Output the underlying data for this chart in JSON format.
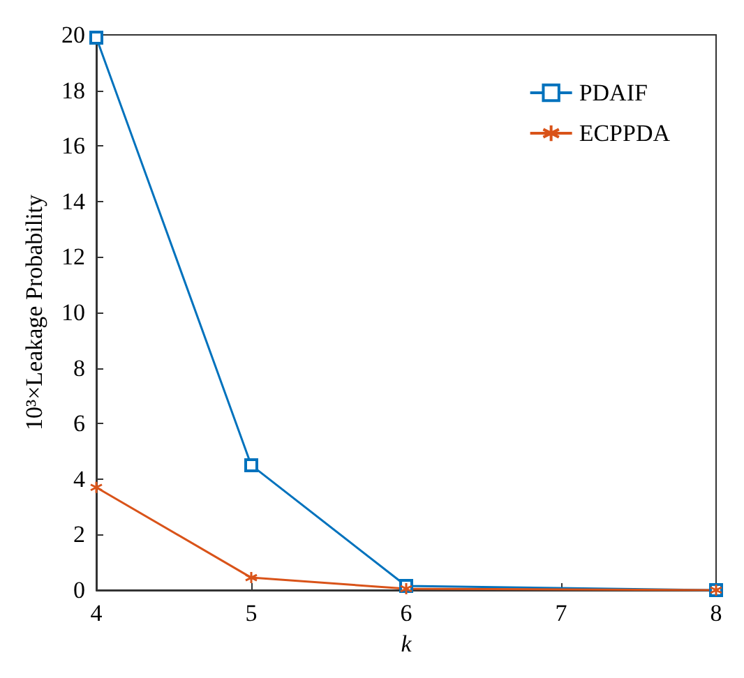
{
  "chart_data": {
    "type": "line",
    "xlabel": "k",
    "ylabel": "10³×Leakage Probability",
    "x": [
      4,
      5,
      6,
      8
    ],
    "xlim": [
      4,
      8
    ],
    "xticks": [
      4,
      5,
      6,
      7,
      8
    ],
    "ylim": [
      0,
      20
    ],
    "yticks": [
      0,
      2,
      4,
      6,
      8,
      10,
      12,
      14,
      16,
      18,
      20
    ],
    "grid": false,
    "legend": "top right",
    "series": [
      {
        "name": "PDAIF",
        "color": "#0072bd",
        "marker": "square",
        "values": [
          19.9,
          4.5,
          0.15,
          0
        ]
      },
      {
        "name": "ECPPDA",
        "color": "#d95319",
        "marker": "cross",
        "values": [
          3.7,
          0.45,
          0.05,
          0
        ]
      }
    ]
  }
}
